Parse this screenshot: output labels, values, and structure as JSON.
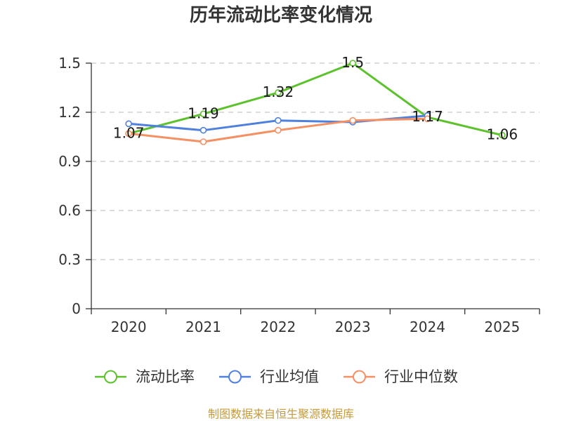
{
  "chart_data": {
    "type": "line",
    "title": "历年流动比率变化情况",
    "categories": [
      "2020",
      "2021",
      "2022",
      "2023",
      "2024",
      "2025"
    ],
    "ylim": [
      0,
      1.5
    ],
    "yticks": [
      "0",
      "0.3",
      "0.6",
      "0.9",
      "1.2",
      "1.5"
    ],
    "grid": true,
    "legend_position": "bottom",
    "series": [
      {
        "name": "流动比率",
        "color": "#5cc22c",
        "values": [
          1.07,
          1.19,
          1.32,
          1.5,
          1.17,
          1.06
        ],
        "data_labels": [
          "1.07",
          "1.19",
          "1.32",
          "1.5",
          "1.17",
          "1.06"
        ]
      },
      {
        "name": "行业均值",
        "color": "#4e80de",
        "values": [
          1.13,
          1.09,
          1.15,
          1.14,
          1.18,
          null
        ]
      },
      {
        "name": "行业中位数",
        "color": "#f59062",
        "values": [
          1.07,
          1.02,
          1.09,
          1.15,
          1.16,
          null
        ]
      }
    ]
  },
  "footer": {
    "source": "制图数据来自恒生聚源数据库"
  }
}
